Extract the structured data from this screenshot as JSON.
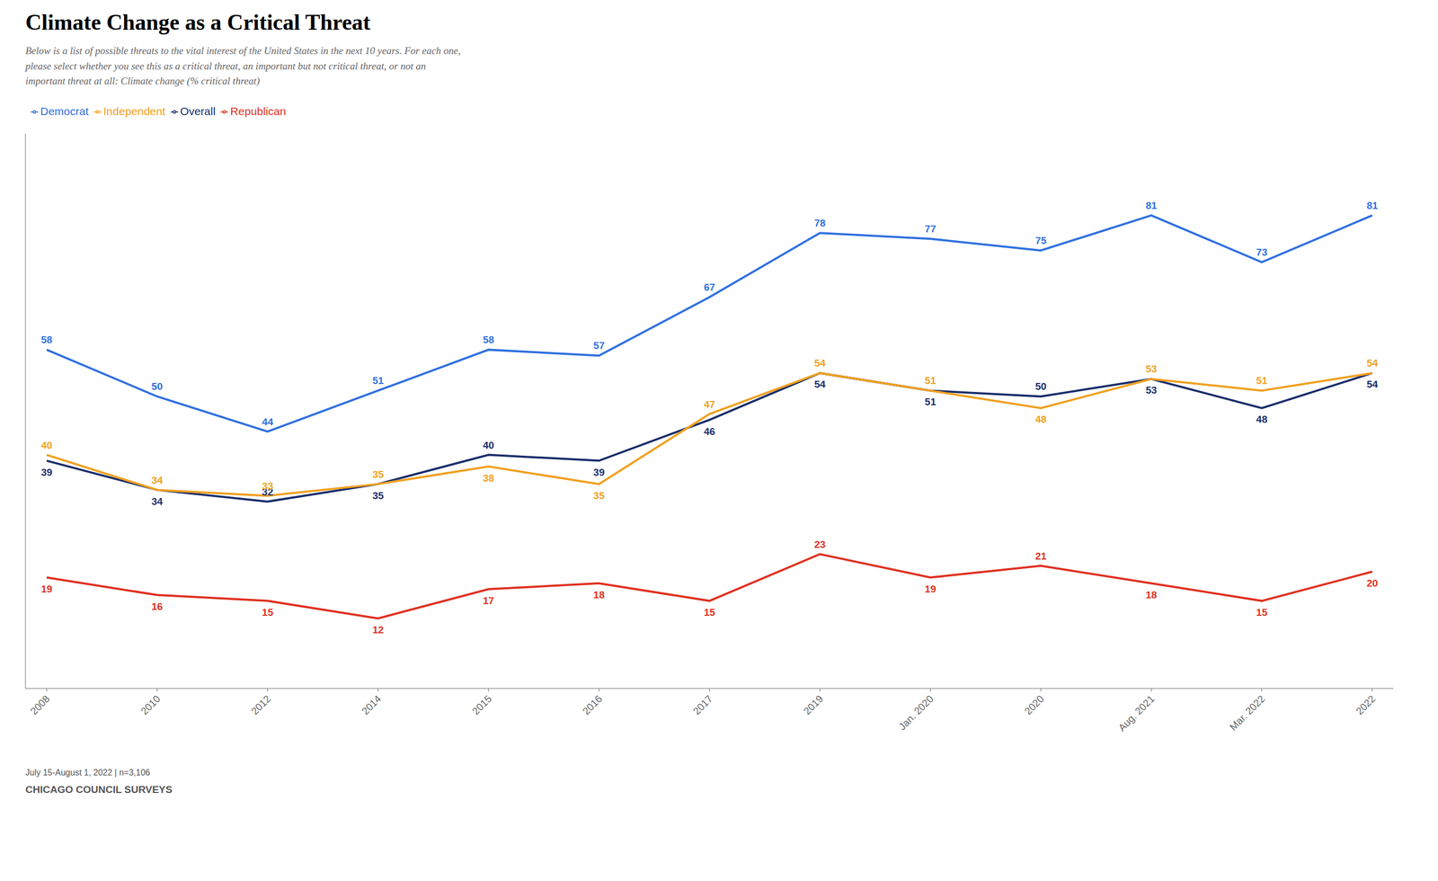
{
  "chart_data": {
    "type": "line",
    "title": "Climate Change as a Critical Threat",
    "subtitle": "Below is a list of possible threats to the vital interest of the United States in the next 10 years. For each one,\nplease select whether you see this as a critical threat, an important but not critical threat, or not an\nimportant threat at all: Climate change (% critical threat)",
    "annotations": [
      "July 15-August 1, 2022 | n=3,106",
      "CHICAGO COUNCIL SURVEYS"
    ],
    "categories": [
      "2008",
      "2010",
      "2012",
      "2014",
      "2015",
      "2016",
      "2017",
      "2019",
      "Jan. 2020",
      "2020",
      "Aug. 2021",
      "Mar. 2022",
      "2022"
    ],
    "series": [
      {
        "name": "Overall",
        "color": "#1a2e6b",
        "values": [
          39,
          34,
          32,
          35,
          40,
          39,
          46,
          54,
          51,
          50,
          53,
          48,
          54
        ]
      },
      {
        "name": "Republican",
        "color": "#e03020",
        "values": [
          19,
          16,
          15,
          12,
          17,
          18,
          15,
          23,
          19,
          21,
          18,
          15,
          20
        ]
      },
      {
        "name": "Democrat",
        "color": "#3070e0",
        "values": [
          58,
          50,
          44,
          51,
          58,
          57,
          67,
          78,
          77,
          75,
          81,
          73,
          81
        ]
      },
      {
        "name": "Independent",
        "color": "#f0a020",
        "values": [
          40,
          34,
          33,
          35,
          38,
          35,
          47,
          54,
          51,
          48,
          53,
          51,
          54
        ]
      }
    ],
    "ylim": [
      0,
      95
    ],
    "grid": false,
    "legend": "upper left",
    "data_labels": true,
    "tick_labels": "x"
  }
}
